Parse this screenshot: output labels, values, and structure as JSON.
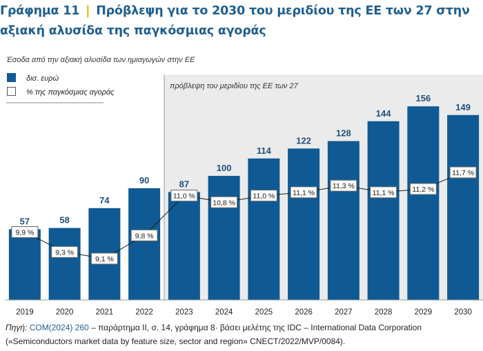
{
  "header": {
    "figure_number": "Γράφημα 11",
    "separator": "|",
    "title": "Πρόβλεψη για το 2030 του μεριδίου της ΕΕ των 27 στην αξιακή αλυσίδα της παγκόσμιας αγοράς"
  },
  "subtitle": "Έσοδα από την αξιακή αλυσίδα των ημιαγωγών στην ΕΕ",
  "source": {
    "prefix": "Πηγή: ",
    "link": "COM(2024) 260",
    "rest": " – παράρτημα ΙΙ, σ. 14, γράφημα 8· βάσει μελέτης της IDC – International Data Corporation («Semiconductors market data by feature size, sector and region» CNECT/2022/MVP/0084)."
  },
  "colors": {
    "bar": "#0f5a94",
    "bar_label": "#1f4f7f",
    "forecast_shade": "#ebebeb",
    "line": "#1a1a1a",
    "title": "#1f5f8f",
    "accent": "#e3b300"
  },
  "chart_data": {
    "type": "bar",
    "categories": [
      "2019",
      "2020",
      "2021",
      "2022",
      "2023",
      "2024",
      "2025",
      "2026",
      "2027",
      "2028",
      "2029",
      "2030"
    ],
    "series": [
      {
        "name": "δισ. ευρώ",
        "values": [
          57,
          58,
          74,
          90,
          87,
          100,
          114,
          122,
          128,
          144,
          156,
          149
        ],
        "labels": [
          "57",
          "58",
          "74",
          "90",
          "87",
          "100",
          "114",
          "122",
          "128",
          "144",
          "156",
          "149"
        ]
      },
      {
        "name": "% της παγκόσμιας αγοράς",
        "type": "line",
        "values": [
          9.9,
          9.3,
          9.1,
          9.8,
          11.0,
          10.8,
          11.0,
          11.1,
          11.3,
          11.1,
          11.2,
          11.7
        ],
        "labels": [
          "9,9 %",
          "9,3 %",
          "9,1 %",
          "9,8 %",
          "11,0 %",
          "10,8 %",
          "11,0 %",
          "11,1 %",
          "11,3 %",
          "11,1 %",
          "11,2 %",
          "11,7 %"
        ]
      }
    ],
    "forecast": {
      "label": "πρόβλεψη του μεριδίου της ΕΕ των 27",
      "from_category": "2023"
    },
    "legend": {
      "placement": "top-left"
    },
    "ylim": [
      0,
      160
    ],
    "grid": false
  }
}
